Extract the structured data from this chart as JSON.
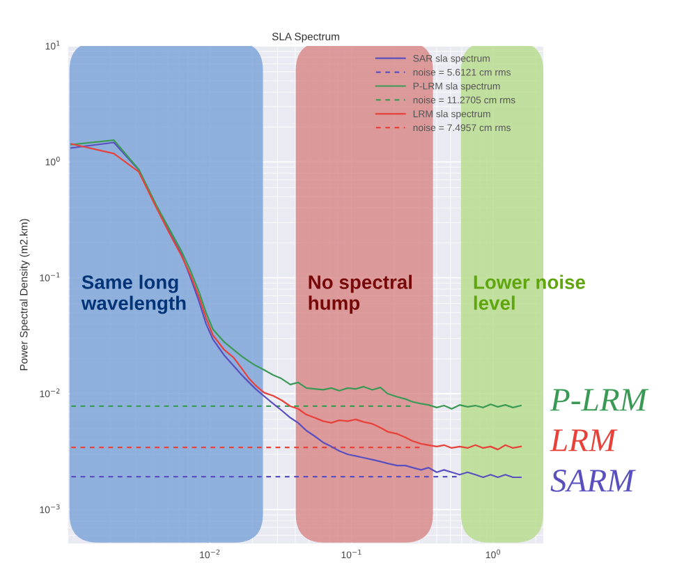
{
  "chart_data": {
    "type": "line",
    "title": "SLA Spectrum",
    "ylabel": "Power Spectral Density (m2.km)",
    "log": "xy",
    "grid": true,
    "legend": "top right",
    "xlim": [
      0.001,
      2.26
    ],
    "ylim": [
      0.00051,
      10
    ],
    "xticks": [
      {
        "value": 0.01,
        "label": "10$^{−2}$"
      },
      {
        "value": 0.1,
        "label": "10$^{−1}$"
      },
      {
        "value": 1,
        "label": "10$^{0}$"
      }
    ],
    "yticks": [
      {
        "value": 0.001,
        "label": "10$^{−3}$"
      },
      {
        "value": 0.01,
        "label": "10$^{−2}$"
      },
      {
        "value": 0.1,
        "label": "10$^{−1}$"
      },
      {
        "value": 1,
        "label": "10$^{0}$"
      },
      {
        "value": 10,
        "label": "10$^{1}$"
      }
    ],
    "x": [
      0.00105,
      0.0021,
      0.00315,
      0.0042,
      0.0052,
      0.0063,
      0.0073,
      0.0084,
      0.0094,
      0.0105,
      0.0126,
      0.0147,
      0.0168,
      0.0189,
      0.021,
      0.0242,
      0.028,
      0.032,
      0.037,
      0.042,
      0.048,
      0.055,
      0.063,
      0.072,
      0.082,
      0.094,
      0.107,
      0.122,
      0.14,
      0.16,
      0.18,
      0.21,
      0.24,
      0.27,
      0.31,
      0.35,
      0.4,
      0.45,
      0.51,
      0.58,
      0.66,
      0.75,
      0.85,
      0.96,
      1.08,
      1.22,
      1.38,
      1.57
    ],
    "series": [
      {
        "name": "SAR sla spectrum",
        "color": "#5a4fbf",
        "line_style": "solid",
        "values": [
          1.32,
          1.47,
          0.85,
          0.41,
          0.25,
          0.16,
          0.1,
          0.062,
          0.04,
          0.0295,
          0.0215,
          0.0174,
          0.0145,
          0.0125,
          0.011,
          0.0095,
          0.0082,
          0.0072,
          0.0062,
          0.0056,
          0.0048,
          0.0043,
          0.0038,
          0.0035,
          0.0032,
          0.003,
          0.0029,
          0.0028,
          0.0027,
          0.0026,
          0.0025,
          0.0024,
          0.0024,
          0.0023,
          0.0022,
          0.0023,
          0.0021,
          0.0022,
          0.0021,
          0.002,
          0.0021,
          0.002,
          0.0019,
          0.002,
          0.0019,
          0.002,
          0.0019,
          0.0019
        ]
      },
      {
        "name": "noise = 5.6121 cm rms",
        "color": "#5a4fbf",
        "line_style": "dashed",
        "values": [
          0.00192,
          0.00192,
          0.00192,
          0.00192,
          0.00192,
          0.00192,
          0.00192,
          0.00192,
          0.00192,
          0.00192,
          0.00192,
          0.00192,
          0.00192,
          0.00192,
          0.00192,
          0.00192,
          0.00192,
          0.00192,
          0.00192,
          0.00192,
          0.00192,
          0.00192,
          0.00192,
          0.00192,
          0.00192,
          0.00192,
          0.00192,
          0.00192,
          0.00192,
          0.00192,
          0.00192,
          0.00192,
          0.00192,
          0.00192,
          0.00192,
          0.00192,
          0.00192,
          0.00192,
          0.00192,
          0.00192,
          null,
          null,
          null,
          null,
          null,
          null,
          null,
          null
        ]
      },
      {
        "name": "P-LRM sla spectrum",
        "color": "#3a9a55",
        "line_style": "solid",
        "values": [
          1.41,
          1.54,
          0.86,
          0.42,
          0.26,
          0.17,
          0.115,
          0.075,
          0.05,
          0.036,
          0.028,
          0.024,
          0.021,
          0.019,
          0.0175,
          0.016,
          0.0145,
          0.0135,
          0.012,
          0.0125,
          0.0112,
          0.011,
          0.0108,
          0.0112,
          0.0106,
          0.0112,
          0.011,
          0.0115,
          0.0108,
          0.0113,
          0.01,
          0.0094,
          0.009,
          0.0085,
          0.0082,
          0.008,
          0.0076,
          0.0079,
          0.0074,
          0.008,
          0.0077,
          0.0079,
          0.0076,
          0.0081,
          0.0077,
          0.008,
          0.0076,
          0.0079
        ]
      },
      {
        "name": "noise = 11.2705 cm rms",
        "color": "#3a9a55",
        "line_style": "dashed",
        "values": [
          0.0078,
          0.0078,
          0.0078,
          0.0078,
          0.0078,
          0.0078,
          0.0078,
          0.0078,
          0.0078,
          0.0078,
          0.0078,
          0.0078,
          0.0078,
          0.0078,
          0.0078,
          0.0078,
          0.0078,
          0.0078,
          0.0078,
          0.0078,
          0.0078,
          0.0078,
          0.0078,
          0.0078,
          0.0078,
          0.0078,
          0.0078,
          0.0078,
          0.0078,
          0.0078,
          0.0078,
          0.0078,
          0.0078,
          0.0078,
          null,
          null,
          null,
          null,
          null,
          null,
          null,
          null,
          null,
          null,
          null,
          null,
          null,
          null
        ]
      },
      {
        "name": "LRM sla spectrum",
        "color": "#e8413a",
        "line_style": "solid",
        "values": [
          1.43,
          1.18,
          0.82,
          0.4,
          0.24,
          0.155,
          0.105,
          0.068,
          0.045,
          0.032,
          0.024,
          0.0205,
          0.0165,
          0.0135,
          0.0118,
          0.0102,
          0.0096,
          0.0088,
          0.0078,
          0.0074,
          0.0066,
          0.0062,
          0.0058,
          0.0056,
          0.0059,
          0.0058,
          0.006,
          0.0057,
          0.0055,
          0.0051,
          0.0047,
          0.0045,
          0.0042,
          0.0039,
          0.0037,
          0.0036,
          0.0035,
          0.0036,
          0.0034,
          0.0035,
          0.0034,
          0.0036,
          0.0034,
          0.0035,
          0.0033,
          0.0036,
          0.0034,
          0.0035
        ]
      },
      {
        "name": "noise = 7.4957 cm rms",
        "color": "#e8413a",
        "line_style": "dashed",
        "values": [
          0.00344,
          0.00344,
          0.00344,
          0.00344,
          0.00344,
          0.00344,
          0.00344,
          0.00344,
          0.00344,
          0.00344,
          0.00344,
          0.00344,
          0.00344,
          0.00344,
          0.00344,
          0.00344,
          0.00344,
          0.00344,
          0.00344,
          0.00344,
          0.00344,
          0.00344,
          0.00344,
          0.00344,
          0.00344,
          0.00344,
          0.00344,
          0.00344,
          0.00344,
          0.00344,
          0.00344,
          0.00344,
          0.00344,
          0.00344,
          0.00344,
          null,
          null,
          null,
          null,
          null,
          null,
          null,
          null,
          null,
          null,
          null,
          null,
          null
        ]
      }
    ],
    "bands": [
      {
        "axis": "x",
        "from": 0.00102,
        "to": 0.0237,
        "label": "Same long\nwavelength",
        "color": "#7fa6d8"
      },
      {
        "axis": "x",
        "from": 0.0404,
        "to": 0.376,
        "label": "No spectral\nhump",
        "color": "#d98b8b"
      },
      {
        "axis": "x",
        "from": 0.593,
        "to": 2.26,
        "label": "Lower noise\nlevel",
        "color": "#b8dc8e"
      }
    ],
    "annotations": [
      "P-LRM",
      "LRM",
      "SARM"
    ]
  }
}
